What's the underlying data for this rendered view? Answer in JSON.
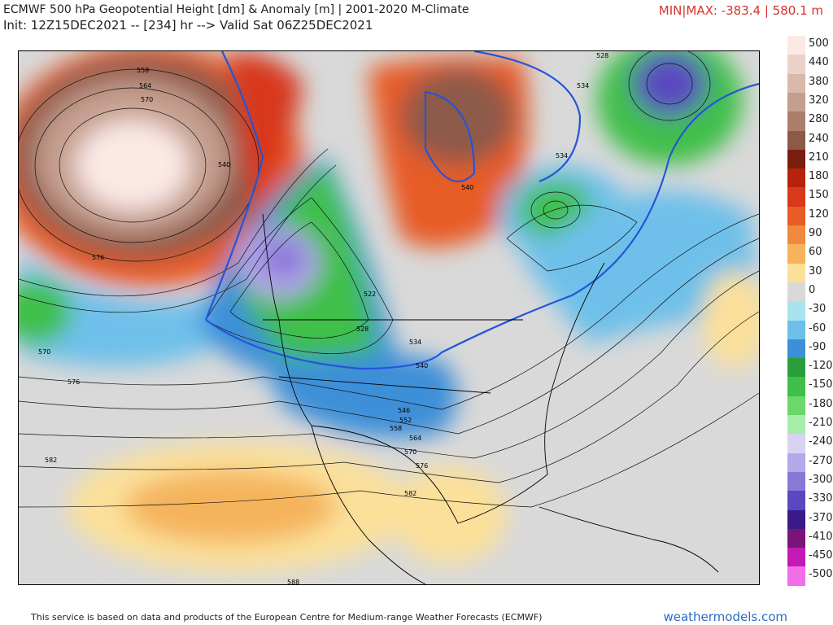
{
  "header": {
    "title": "ECMWF 500 hPa Geopotential Height [dm] & Anomaly [m] | 2001-2020 M-Climate",
    "subtitle": "Init: 12Z15DEC2021 -- [234] hr --> Valid Sat 06Z25DEC2021",
    "minmax": "MIN|MAX: -383.4 | 580.1 m"
  },
  "footer": {
    "attribution": "This service is based on data and products of the European Centre for Medium-range Weather Forecasts (ECMWF)",
    "brand": "weathermodels.com"
  },
  "legend": {
    "labels": [
      "500",
      "440",
      "380",
      "320",
      "280",
      "240",
      "210",
      "180",
      "150",
      "120",
      "90",
      "60",
      "30",
      "0",
      "-30",
      "-60",
      "-90",
      "-120",
      "-150",
      "-180",
      "-210",
      "-240",
      "-270",
      "-300",
      "-330",
      "-370",
      "-410",
      "-450",
      "-500"
    ],
    "colors": [
      "#fbe9e6",
      "#ead2c8",
      "#d8b9ac",
      "#c49e8e",
      "#ab7e6c",
      "#8e5a48",
      "#7a1f10",
      "#b5230d",
      "#d8391a",
      "#e85c26",
      "#f08a3c",
      "#f5b45c",
      "#fbe09a",
      "#d9d9d9",
      "#a8e4f0",
      "#6ec0ea",
      "#3d8fd8",
      "#2b9e3c",
      "#3fbf4a",
      "#6ad86a",
      "#a8ecaa",
      "#d8d2f2",
      "#b4a8ea",
      "#8a78d8",
      "#5a48c0",
      "#3a1a8a",
      "#7a147a",
      "#c21ab4",
      "#f26ee8"
    ]
  },
  "map_labels": [
    {
      "text": "558"
    },
    {
      "text": "564"
    },
    {
      "text": "570"
    },
    {
      "text": "576"
    },
    {
      "text": "570"
    },
    {
      "text": "576"
    },
    {
      "text": "582"
    },
    {
      "text": "522"
    },
    {
      "text": "528"
    },
    {
      "text": "534"
    },
    {
      "text": "540"
    },
    {
      "text": "546"
    },
    {
      "text": "552"
    },
    {
      "text": "558"
    },
    {
      "text": "564"
    },
    {
      "text": "570"
    },
    {
      "text": "576"
    },
    {
      "text": "582"
    },
    {
      "text": "588"
    },
    {
      "text": "528"
    },
    {
      "text": "534"
    },
    {
      "text": "534"
    },
    {
      "text": "540"
    },
    {
      "text": "540"
    }
  ]
}
